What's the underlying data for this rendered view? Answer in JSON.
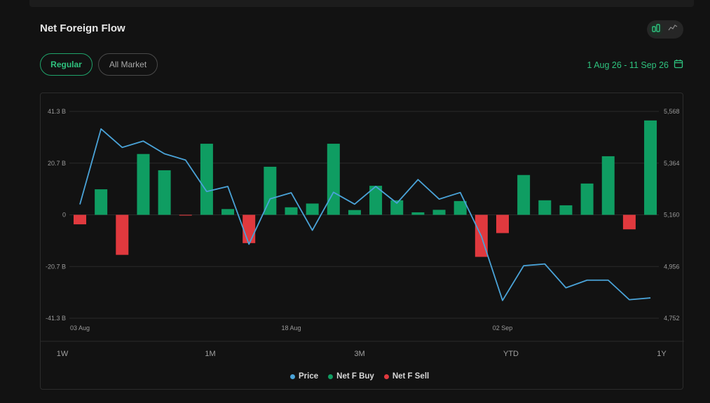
{
  "header": {
    "title": "Net Foreign Flow"
  },
  "view_toggle": {
    "bar_icon": "bar-chart-icon",
    "line_icon": "line-chart-icon"
  },
  "filters": {
    "regular_label": "Regular",
    "all_market_label": "All Market"
  },
  "date_range": {
    "label": "1 Aug 26 - 11 Sep 26",
    "icon": "calendar-icon"
  },
  "range_buttons": [
    "1W",
    "1M",
    "3M",
    "YTD",
    "1Y"
  ],
  "legend": [
    {
      "label": "Price",
      "color": "#4aa3d8"
    },
    {
      "label": "Net F Buy",
      "color": "#0f9d62"
    },
    {
      "label": "Net F Sell",
      "color": "#e0393e"
    }
  ],
  "chart_data": {
    "type": "bar",
    "x_tick_labels": [
      "03 Aug",
      "18 Aug",
      "02 Sep"
    ],
    "x_tick_index": [
      0,
      10,
      20
    ],
    "left_axis": {
      "ticks": [
        "41.3 B",
        "20.7 B",
        "0",
        "-20.7 B",
        "-41.3 B"
      ],
      "ylim": [
        -41.3,
        41.3
      ],
      "unit": "B"
    },
    "right_axis": {
      "ticks": [
        "5,568",
        "5,364",
        "5,160",
        "4,956",
        "4,752"
      ],
      "ylim": [
        4752,
        5568
      ]
    },
    "series": [
      {
        "name": "Net F Buy / Net F Sell",
        "type": "bar",
        "values": [
          -3.8,
          10.2,
          -16.0,
          24.3,
          17.8,
          -0.3,
          28.4,
          2.3,
          -11.3,
          19.2,
          3.0,
          4.5,
          28.4,
          1.9,
          11.6,
          5.8,
          1.0,
          2.0,
          5.5,
          -16.8,
          -7.3,
          15.9,
          5.8,
          3.8,
          12.5,
          23.4,
          -5.8,
          37.7
        ]
      },
      {
        "name": "Price",
        "type": "line",
        "axis": "right",
        "values": [
          5201,
          5499,
          5426,
          5451,
          5401,
          5376,
          5252,
          5272,
          5044,
          5223,
          5247,
          5099,
          5249,
          5202,
          5272,
          5206,
          5299,
          5222,
          5248,
          5075,
          4822,
          4959,
          4966,
          4872,
          4902,
          4902,
          4825,
          4832
        ]
      }
    ],
    "colors": {
      "buy": "#0f9d62",
      "sell": "#e0393e",
      "price": "#4aa3d8"
    },
    "grid": true,
    "legend_position": "bottom"
  }
}
